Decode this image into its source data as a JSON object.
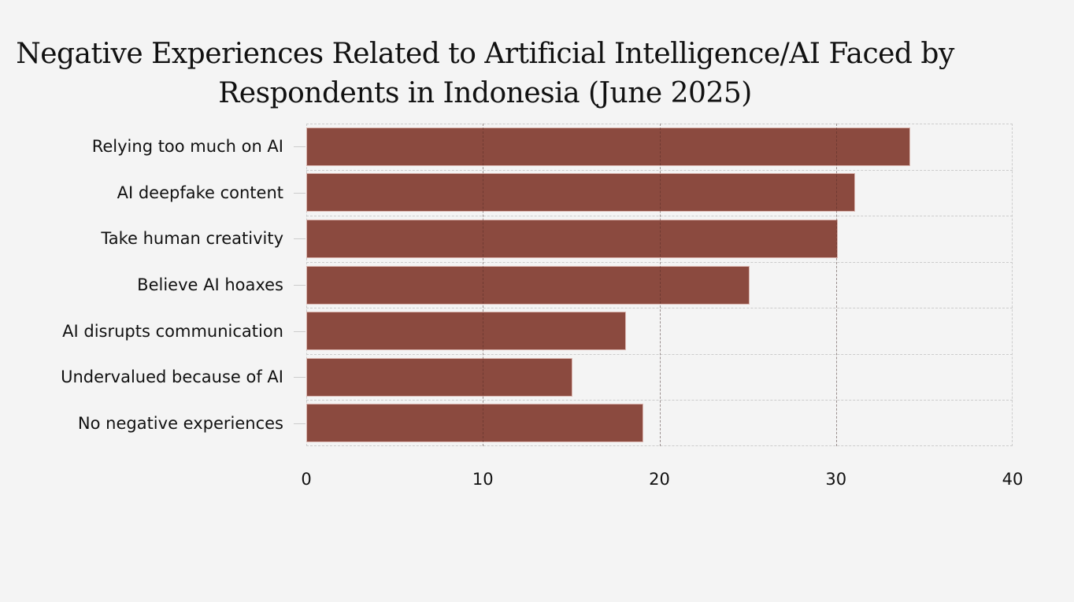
{
  "chart_data": {
    "type": "bar",
    "orientation": "horizontal",
    "title": "Negative Experiences Related to Artificial Intelligence/AI Faced by Respondents in Indonesia (June 2025)",
    "title_lines": [
      "Negative Experiences Related to Artificial Intelligence/AI Faced by",
      "Respondents in Indonesia (June 2025)"
    ],
    "categories": [
      "Relying too much on AI",
      "AI deepfake content",
      "Take human creativity",
      "Believe AI hoaxes",
      "AI disrupts communication",
      "Undervalued because of AI",
      "No negative experiences"
    ],
    "values": [
      34.1,
      31,
      30,
      25,
      18,
      15,
      19
    ],
    "xlabel": "",
    "ylabel": "",
    "xlim": [
      0,
      40
    ],
    "xticks": [
      "0",
      "10",
      "20",
      "30",
      "40"
    ],
    "grid": true,
    "bar_color": "#8b4a3f"
  }
}
